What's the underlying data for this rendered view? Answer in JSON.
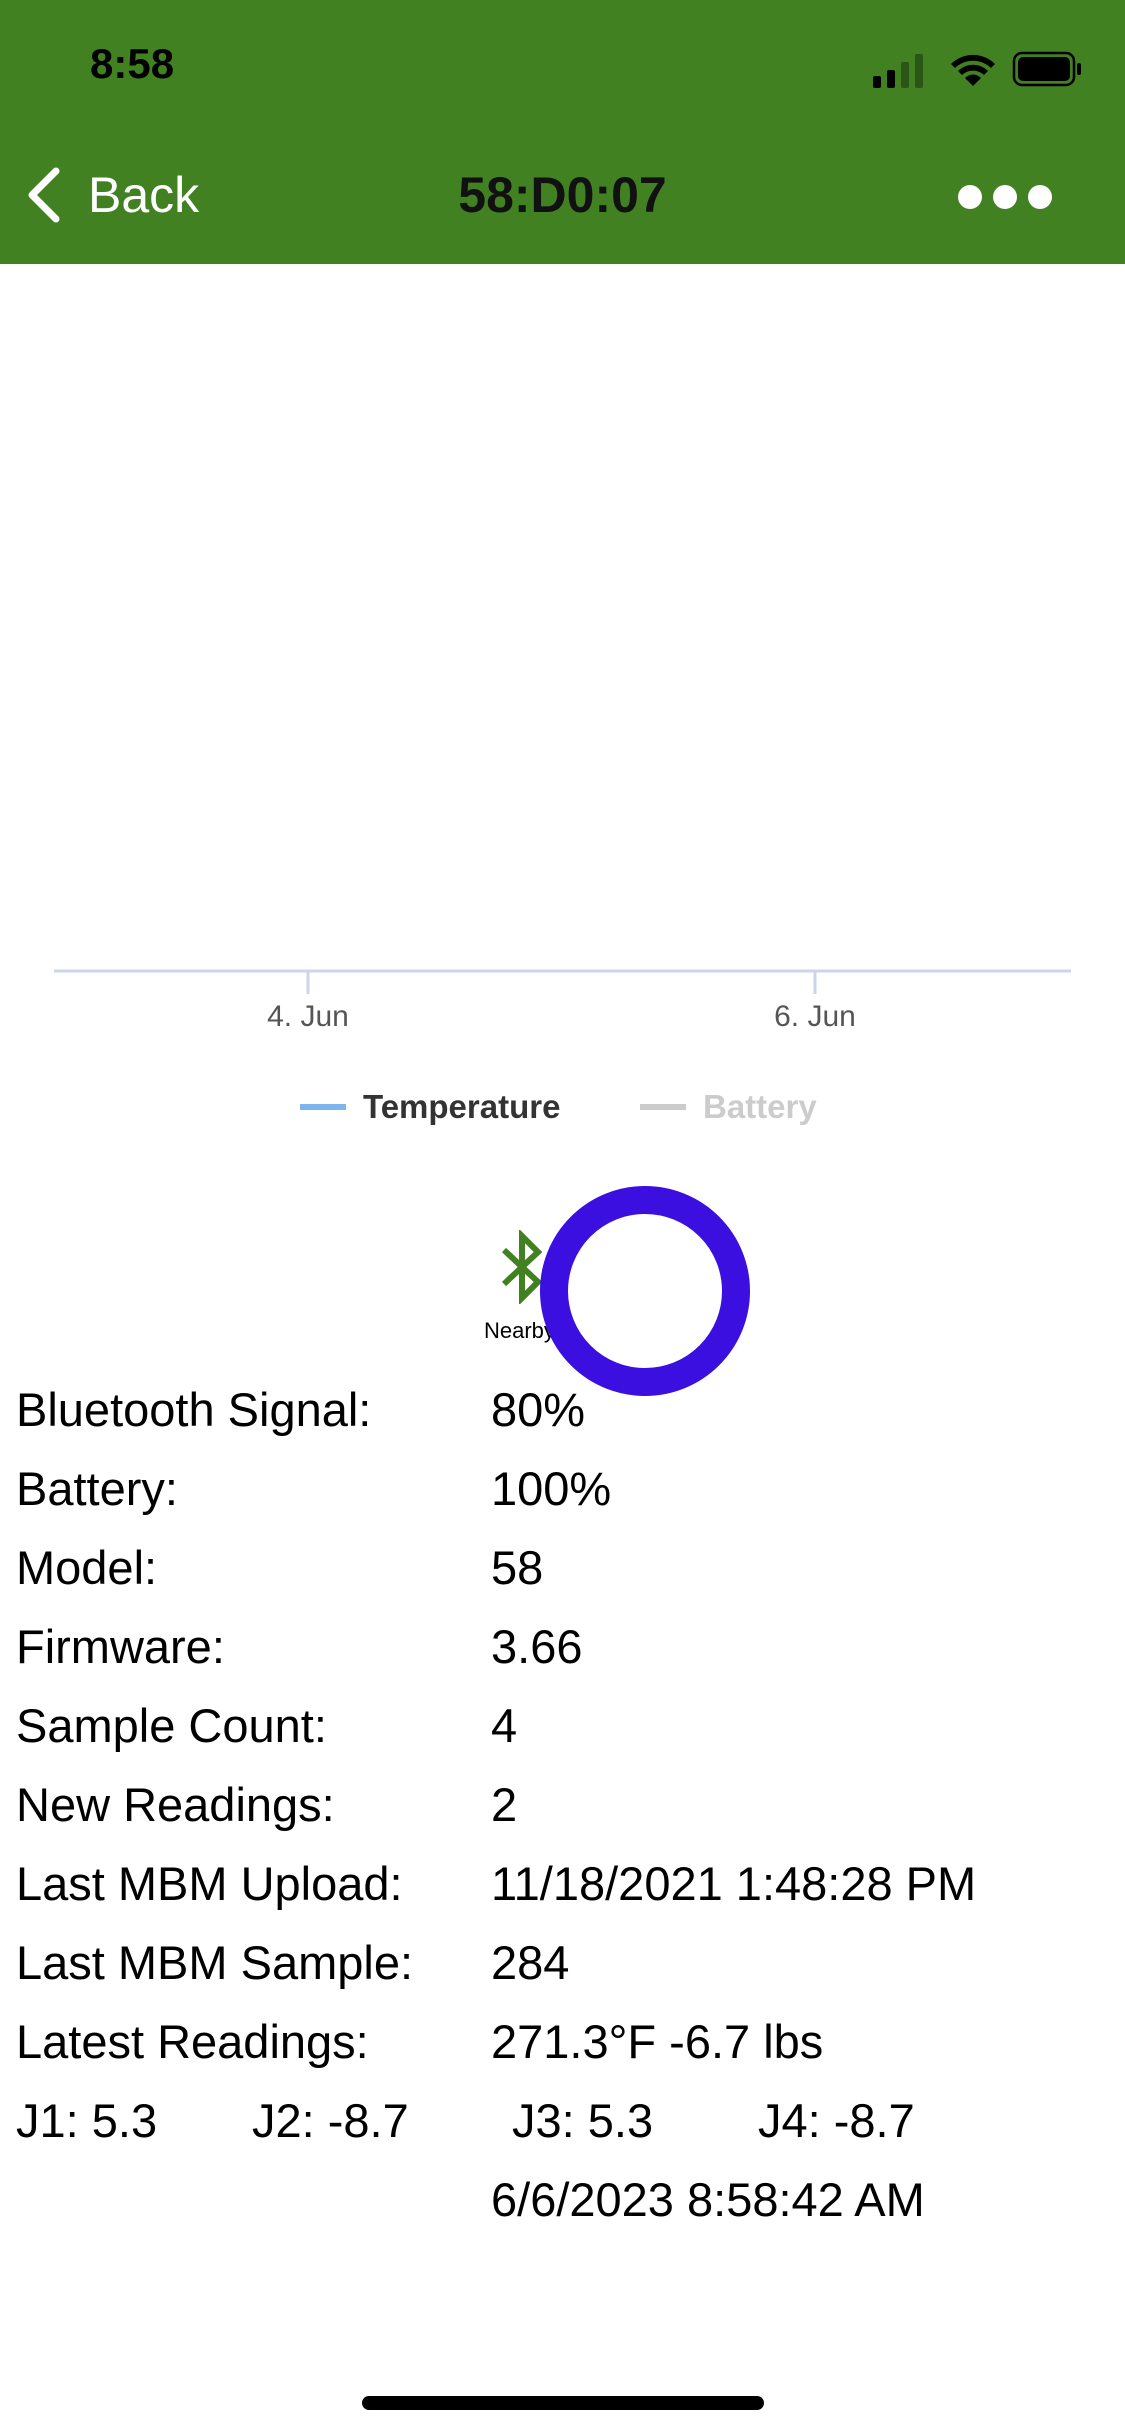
{
  "status_bar": {
    "time": "8:58"
  },
  "nav": {
    "back_label": "Back",
    "title": "58:D0:07"
  },
  "chart_data": {
    "type": "line",
    "x_ticks": [
      "4. Jun",
      "6. Jun"
    ],
    "series": [
      {
        "name": "Temperature",
        "color": "#7cb5ec",
        "active": true
      },
      {
        "name": "Battery",
        "color": "#cccccc",
        "active": false
      }
    ],
    "legend_position": "bottom"
  },
  "device": {
    "nearby_label": "Nearby",
    "bt_color": "#428122",
    "ring_color": "#3a0fe0"
  },
  "info": {
    "rows": [
      {
        "label": "Bluetooth Signal:",
        "value": "80%"
      },
      {
        "label": "Battery:",
        "value": "100%"
      },
      {
        "label": "Model:",
        "value": "58"
      },
      {
        "label": "Firmware:",
        "value": "3.66"
      },
      {
        "label": "Sample Count:",
        "value": "4"
      },
      {
        "label": "New Readings:",
        "value": "2"
      },
      {
        "label": "Last MBM Upload:",
        "value": "11/18/2021 1:48:28 PM"
      },
      {
        "label": "Last MBM Sample:",
        "value": "284"
      },
      {
        "label": "Latest Readings:",
        "value": "271.3°F  -6.7 lbs"
      }
    ],
    "j_readings": [
      "J1: 5.3",
      "J2: -8.7",
      "J3: 5.3",
      "J4: -8.7"
    ],
    "last_reading_time": "6/6/2023 8:58:42 AM"
  }
}
